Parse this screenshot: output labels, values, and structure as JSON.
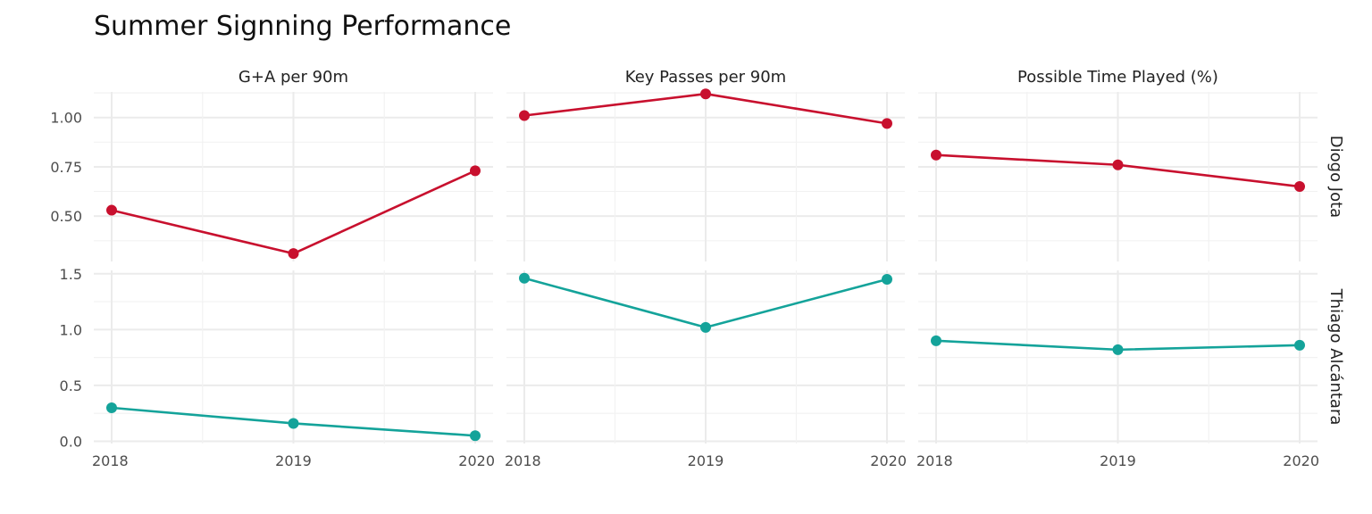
{
  "chart_data": {
    "type": "line",
    "title": "Summer Signning Performance",
    "facet_columns": [
      "G+A per 90m",
      "Key Passes per 90m",
      "Possible Time Played (%)"
    ],
    "facet_rows": [
      "Diogo Jota",
      "Thiago Alcántara"
    ],
    "x": [
      "2018",
      "2019",
      "2020"
    ],
    "row_scales": {
      "Diogo Jota": {
        "ylim": [
          0.27,
          1.13
        ],
        "ticks": [
          "0.50",
          "0.75",
          "1.00"
        ]
      },
      "Thiago Alcántara": {
        "ylim": [
          -0.02,
          1.53
        ],
        "ticks": [
          "0.0",
          "0.5",
          "1.0",
          "1.5"
        ]
      }
    },
    "series": [
      {
        "player": "Diogo Jota",
        "metric": "G+A per 90m",
        "values": [
          0.53,
          0.31,
          0.73
        ]
      },
      {
        "player": "Diogo Jota",
        "metric": "Key Passes per 90m",
        "values": [
          1.01,
          1.12,
          0.97
        ]
      },
      {
        "player": "Diogo Jota",
        "metric": "Possible Time Played (%)",
        "values": [
          0.81,
          0.76,
          0.65
        ]
      },
      {
        "player": "Thiago Alcántara",
        "metric": "G+A per 90m",
        "values": [
          0.3,
          0.16,
          0.05
        ]
      },
      {
        "player": "Thiago Alcántara",
        "metric": "Key Passes per 90m",
        "values": [
          1.46,
          1.02,
          1.45
        ]
      },
      {
        "player": "Thiago Alcántara",
        "metric": "Possible Time Played (%)",
        "values": [
          0.9,
          0.82,
          0.86
        ]
      }
    ],
    "colors": {
      "Diogo Jota": "#c8102e",
      "Thiago Alcántara": "#14a39a"
    },
    "grid": true,
    "legend": "none"
  }
}
